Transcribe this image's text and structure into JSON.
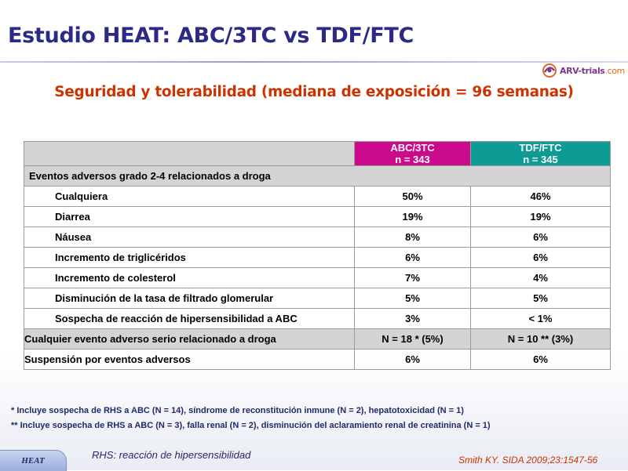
{
  "title": "Estudio HEAT: ABC/3TC vs TDF/FTC",
  "logo": {
    "brand": "ARV-trials",
    "domain": ".com",
    "mark_color": "#7a3a8a"
  },
  "subtitle": "Seguridad y tolerabilidad (mediana de exposición = 96 semanas)",
  "colors": {
    "title": "#2b2b87",
    "subtitle": "#cc3300",
    "abc_header": "#cc0a8c",
    "tdf_header": "#0e9b96",
    "row_shade": "#d4d4d4"
  },
  "table": {
    "columns": [
      {
        "name": "ABC/3TC",
        "n": "n = 343"
      },
      {
        "name": "TDF/FTC",
        "n": "n = 345"
      }
    ],
    "section": "Eventos adversos grado 2-4 relacionados a droga",
    "rows": [
      {
        "label": "Cualquiera",
        "abc": "50%",
        "tdf": "46%"
      },
      {
        "label": "Diarrea",
        "abc": "19%",
        "tdf": "19%"
      },
      {
        "label": "Náusea",
        "abc": "8%",
        "tdf": "6%"
      },
      {
        "label": "Incremento de triglicéridos",
        "abc": "6%",
        "tdf": "6%"
      },
      {
        "label": "Incremento de colesterol",
        "abc": "7%",
        "tdf": "4%"
      },
      {
        "label": "Disminución de la tasa de filtrado glomerular",
        "abc": "5%",
        "tdf": "5%"
      },
      {
        "label": "Sospecha de reacción de hipersensibilidad a ABC",
        "abc": "3%",
        "tdf": "< 1%"
      }
    ],
    "serious": {
      "label": "Cualquier evento adverso serio relacionado a droga",
      "abc": "N = 18 * (5%)",
      "tdf": "N = 10 ** (3%)"
    },
    "discontinuation": {
      "label": "Suspensión por eventos adversos",
      "abc": "6%",
      "tdf": "6%"
    }
  },
  "footnotes": [
    "* Incluye sospecha de RHS a ABC (N = 14), síndrome de reconstitución inmune (N = 2), hepatotoxicidad (N = 1)",
    "** Incluye sospecha de RHS a ABC (N = 3), falla renal (N = 2), disminución del aclaramiento renal de creatinina (N = 1)"
  ],
  "abbreviation": "RHS: reacción de hipersensibilidad",
  "badge": "HEAT",
  "reference": "Smith KY. SIDA 2009;23:1547-56"
}
